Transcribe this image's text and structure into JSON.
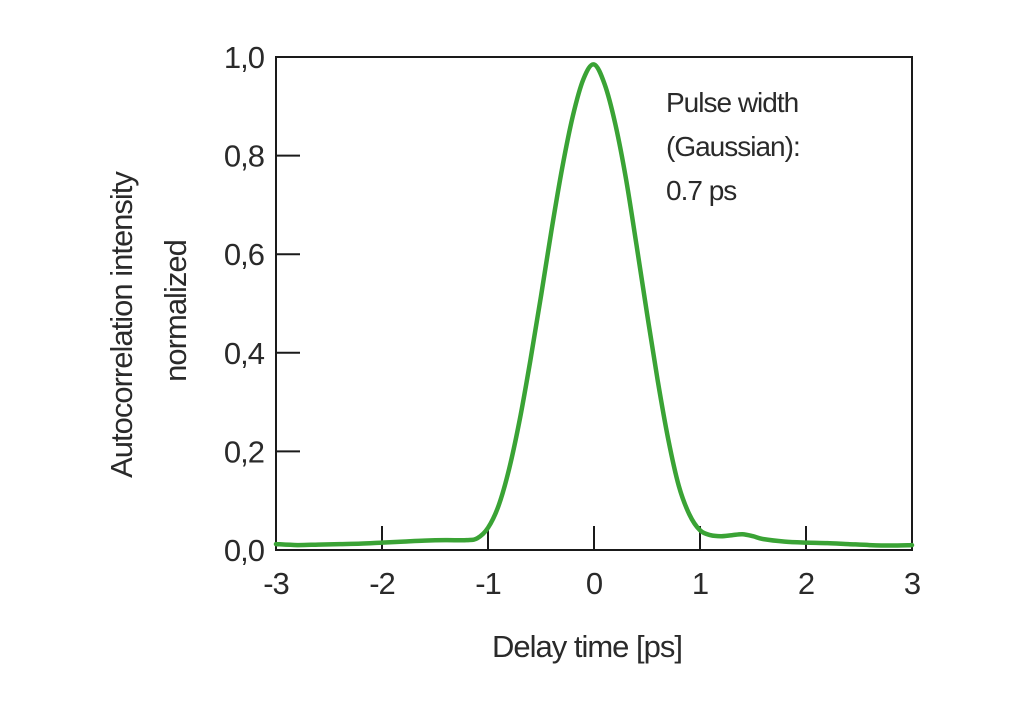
{
  "chart_data": {
    "type": "line",
    "title": "",
    "xlabel": "Delay time [ps]",
    "ylabel_lines": [
      "Autocorrelation intensity",
      "normalized"
    ],
    "xlim": [
      -3,
      3
    ],
    "ylim": [
      0,
      1
    ],
    "x_ticks": [
      -3,
      -2,
      -1,
      0,
      1,
      2,
      3
    ],
    "x_tick_labels": [
      "-3",
      "-2",
      "-1",
      "0",
      "1",
      "2",
      "3"
    ],
    "y_ticks": [
      0,
      0.2,
      0.4,
      0.6,
      0.8,
      1.0
    ],
    "y_tick_labels": [
      "0,0",
      "0,2",
      "0,4",
      "0,6",
      "0,8",
      "1,0"
    ],
    "grid": false,
    "annotation_lines": [
      "Pulse width",
      "(Gaussian):",
      "0.7 ps"
    ],
    "series": [
      {
        "color": "#3aa335",
        "x": [
          -3.0,
          -2.8,
          -2.6,
          -2.4,
          -2.2,
          -2.0,
          -1.8,
          -1.6,
          -1.4,
          -1.2,
          -1.1,
          -1.0,
          -0.9,
          -0.8,
          -0.7,
          -0.6,
          -0.5,
          -0.4,
          -0.3,
          -0.2,
          -0.1,
          0.0,
          0.1,
          0.2,
          0.3,
          0.4,
          0.5,
          0.6,
          0.7,
          0.8,
          0.9,
          1.0,
          1.1,
          1.2,
          1.3,
          1.4,
          1.5,
          1.6,
          1.8,
          2.0,
          2.2,
          2.4,
          2.6,
          2.8,
          3.0
        ],
        "y": [
          0.012,
          0.01,
          0.011,
          0.012,
          0.013,
          0.015,
          0.017,
          0.019,
          0.02,
          0.02,
          0.024,
          0.045,
          0.09,
          0.165,
          0.265,
          0.385,
          0.515,
          0.65,
          0.775,
          0.88,
          0.955,
          0.985,
          0.945,
          0.865,
          0.755,
          0.62,
          0.48,
          0.345,
          0.225,
          0.13,
          0.072,
          0.04,
          0.03,
          0.028,
          0.03,
          0.032,
          0.028,
          0.022,
          0.017,
          0.015,
          0.014,
          0.012,
          0.01,
          0.009,
          0.01
        ]
      }
    ]
  }
}
